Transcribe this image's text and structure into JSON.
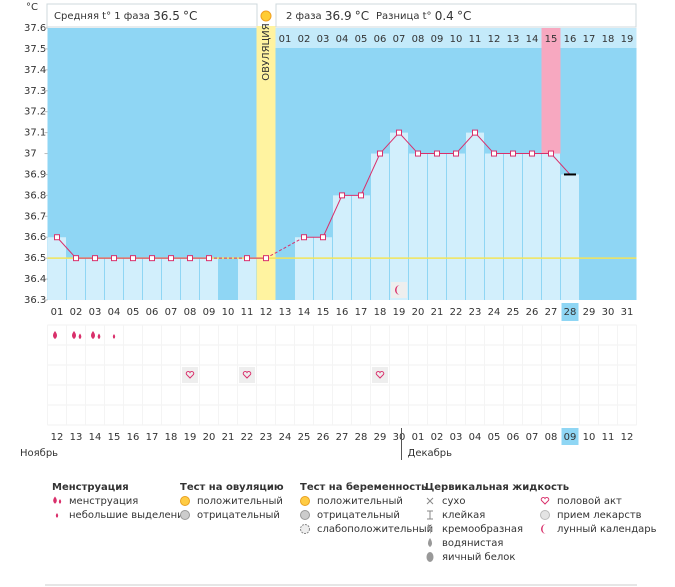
{
  "header": {
    "phase1_label": "Средняя t° 1 фаза",
    "phase1_avg": 36.5,
    "phase2_label": "2 фаза",
    "phase2_avg": 36.9,
    "diff_label": "Разница t°",
    "diff": 0.4,
    "unit": "°C"
  },
  "chart_data": {
    "type": "line",
    "y_label": "°C",
    "categories": [
      "01",
      "02",
      "03",
      "04",
      "05",
      "06",
      "07",
      "08",
      "09",
      "10",
      "11",
      "12",
      "13",
      "14",
      "15",
      "16",
      "17",
      "18",
      "19",
      "20",
      "21",
      "22",
      "23",
      "24",
      "25",
      "26",
      "27",
      "28",
      "29",
      "30",
      "31"
    ],
    "values": [
      36.6,
      36.5,
      36.5,
      36.5,
      36.5,
      36.5,
      36.5,
      36.5,
      36.5,
      null,
      36.5,
      36.5,
      null,
      36.6,
      36.6,
      36.8,
      36.8,
      37,
      37.1,
      37,
      37,
      37,
      37.1,
      37,
      37,
      37,
      37,
      36.9,
      null,
      null,
      null
    ],
    "color": "#d9306b",
    "ylim": [
      36.3,
      37.6
    ],
    "yticks": [
      36.3,
      36.4,
      36.5,
      36.6,
      36.7,
      36.8,
      36.9,
      37,
      37.1,
      37.2,
      37.3,
      37.4,
      37.5,
      37.6
    ],
    "ovulation_day": "12",
    "ovulation_label": "ОВУЛЯЦИЯ",
    "highlight_day": "27",
    "today": "28",
    "phase2_start": "13",
    "phase2_days": [
      "01",
      "02",
      "03",
      "04",
      "05",
      "06",
      "07",
      "08",
      "09",
      "10",
      "11",
      "12",
      "13",
      "14",
      "15",
      "16",
      "17",
      "18",
      "19"
    ]
  },
  "symbols": [
    {
      "day": "01",
      "kind": "menstruation"
    },
    {
      "day": "02",
      "kind": "menstruation"
    },
    {
      "day": "03",
      "kind": "menstruation"
    },
    {
      "day": "04",
      "kind": "spotting"
    },
    {
      "day": "08",
      "kind": "intercourse"
    },
    {
      "day": "11",
      "kind": "intercourse"
    },
    {
      "day": "18",
      "kind": "intercourse"
    },
    {
      "day": "19",
      "kind": "moon"
    }
  ],
  "dates": [
    {
      "text": "12",
      "weekend": false
    },
    {
      "text": "13",
      "weekend": false
    },
    {
      "text": "14",
      "weekend": false
    },
    {
      "text": "15",
      "weekend": false
    },
    {
      "text": "16",
      "weekend": true
    },
    {
      "text": "17",
      "weekend": true
    },
    {
      "text": "18",
      "weekend": false
    },
    {
      "text": "19",
      "weekend": false
    },
    {
      "text": "20",
      "weekend": false
    },
    {
      "text": "21",
      "weekend": false
    },
    {
      "text": "22",
      "weekend": false
    },
    {
      "text": "23",
      "weekend": true
    },
    {
      "text": "24",
      "weekend": true
    },
    {
      "text": "25",
      "weekend": false
    },
    {
      "text": "26",
      "weekend": false
    },
    {
      "text": "27",
      "weekend": false
    },
    {
      "text": "28",
      "weekend": false
    },
    {
      "text": "29",
      "weekend": false
    },
    {
      "text": "30",
      "weekend": true
    },
    {
      "text": "01",
      "weekend": true
    },
    {
      "text": "02",
      "weekend": false
    },
    {
      "text": "03",
      "weekend": false
    },
    {
      "text": "04",
      "weekend": false
    },
    {
      "text": "05",
      "weekend": false
    },
    {
      "text": "06",
      "weekend": false
    },
    {
      "text": "07",
      "weekend": true
    },
    {
      "text": "08",
      "weekend": true
    },
    {
      "text": "09",
      "weekend": false
    },
    {
      "text": "10",
      "weekend": false
    },
    {
      "text": "11",
      "weekend": false
    },
    {
      "text": "12",
      "weekend": false
    }
  ],
  "months": [
    {
      "text": "Ноябрь",
      "day": "01"
    },
    {
      "text": "Декабрь",
      "day": "20"
    }
  ],
  "legend": [
    {
      "title": "Менструация",
      "items": [
        {
          "text": "менструация",
          "icon": "menstruation"
        },
        {
          "text": "небольшие выделения",
          "icon": "spotting"
        }
      ]
    },
    {
      "title": "Тест на овуляцию",
      "items": [
        {
          "text": "положительный",
          "icon": "pos"
        },
        {
          "text": "отрицательный",
          "icon": "neg"
        }
      ]
    },
    {
      "title": "Тест на беременность",
      "items": [
        {
          "text": "положительный",
          "icon": "pos"
        },
        {
          "text": "отрицательный",
          "icon": "neg"
        },
        {
          "text": "слабоположительный",
          "icon": "weak"
        }
      ]
    },
    {
      "title": "Цервикальная жидкость",
      "items": [
        {
          "text": "сухо",
          "icon": "dry"
        },
        {
          "text": "клейкая",
          "icon": "sticky"
        },
        {
          "text": "кремообразная",
          "icon": "creamy"
        },
        {
          "text": "водянистая",
          "icon": "watery"
        },
        {
          "text": "яичный белок",
          "icon": "egg"
        }
      ]
    },
    {
      "items": [
        {
          "text": "половой акт",
          "icon": "intercourse"
        },
        {
          "text": "прием лекарств",
          "icon": "pill"
        },
        {
          "text": "лунный календарь",
          "icon": "moon"
        }
      ]
    }
  ]
}
